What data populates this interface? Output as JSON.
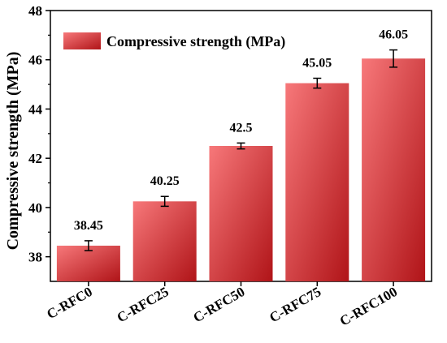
{
  "chart_data": {
    "type": "bar",
    "categories": [
      "C-RFC0",
      "C-RFC25",
      "C-RFC50",
      "C-RFC75",
      "C-RFC100"
    ],
    "series": [
      {
        "name": "Compressive strength (MPa)",
        "values": [
          38.45,
          40.25,
          42.5,
          45.05,
          46.05
        ],
        "errors": [
          0.2,
          0.2,
          0.12,
          0.2,
          0.35
        ],
        "data_labels": [
          "38.45",
          "40.25",
          "42.5",
          "45.05",
          "46.05"
        ]
      }
    ],
    "ylabel": "Compressive strength (MPa)",
    "xlabel": "",
    "ylim": [
      37,
      48
    ],
    "yticks": [
      38,
      40,
      42,
      44,
      46,
      48
    ],
    "ytick_labels": [
      "38",
      "40",
      "42",
      "44",
      "46",
      "48"
    ],
    "legend_placement": "top-left",
    "grid": false,
    "colors": {
      "bar_light": "#f7787a",
      "bar_dark": "#b01418",
      "axis": "#000000"
    }
  }
}
